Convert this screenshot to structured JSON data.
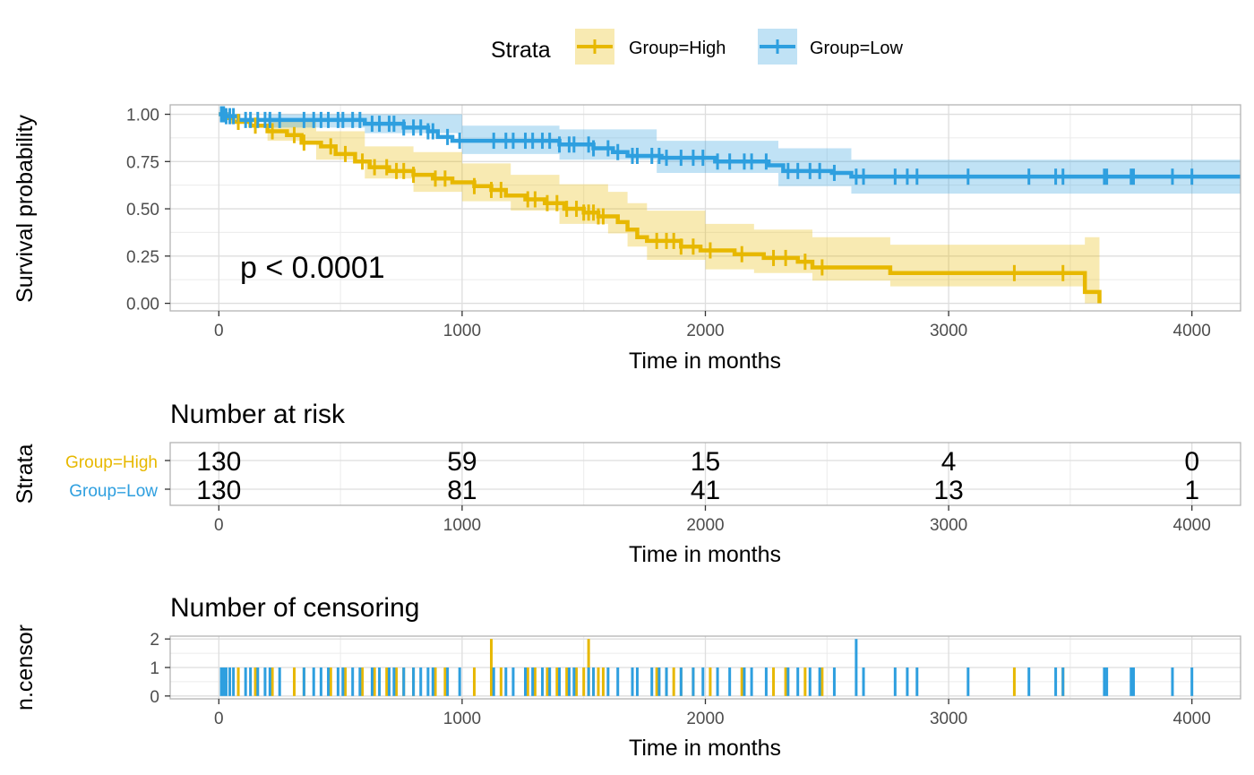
{
  "legend": {
    "title": "Strata",
    "items": [
      {
        "label": "Group=High",
        "color": "#E7B800"
      },
      {
        "label": "Group=Low",
        "color": "#2E9FDF"
      }
    ]
  },
  "chart_data": [
    {
      "type": "line",
      "subtype": "kaplan-meier",
      "title": "",
      "xlabel": "Time in months",
      "ylabel": "Survival probability",
      "xlim": [
        -200,
        4200
      ],
      "ylim": [
        -0.04,
        1.05
      ],
      "x_ticks": [
        0,
        1000,
        2000,
        3000,
        4000
      ],
      "y_ticks": [
        0,
        0.25,
        0.5,
        0.75,
        1
      ],
      "y_tick_labels": [
        "0.00",
        "0.25",
        "0.50",
        "0.75",
        "1.00"
      ],
      "grid": true,
      "legend_position": "top",
      "annotation": "p < 0.0001",
      "series": [
        {
          "name": "Group=High",
          "color": "#E7B800",
          "steps": [
            [
              0,
              1.0
            ],
            [
              30,
              0.98
            ],
            [
              60,
              0.96
            ],
            [
              130,
              0.94
            ],
            [
              200,
              0.91
            ],
            [
              280,
              0.89
            ],
            [
              340,
              0.85
            ],
            [
              420,
              0.83
            ],
            [
              480,
              0.79
            ],
            [
              560,
              0.75
            ],
            [
              620,
              0.72
            ],
            [
              700,
              0.7
            ],
            [
              800,
              0.68
            ],
            [
              880,
              0.66
            ],
            [
              960,
              0.64
            ],
            [
              1050,
              0.62
            ],
            [
              1120,
              0.6
            ],
            [
              1180,
              0.57
            ],
            [
              1260,
              0.55
            ],
            [
              1340,
              0.53
            ],
            [
              1420,
              0.5
            ],
            [
              1500,
              0.48
            ],
            [
              1560,
              0.46
            ],
            [
              1640,
              0.43
            ],
            [
              1680,
              0.39
            ],
            [
              1720,
              0.35
            ],
            [
              1760,
              0.33
            ],
            [
              1900,
              0.3
            ],
            [
              1980,
              0.28
            ],
            [
              2120,
              0.26
            ],
            [
              2240,
              0.24
            ],
            [
              2380,
              0.22
            ],
            [
              2440,
              0.19
            ],
            [
              2760,
              0.16
            ],
            [
              3560,
              0.06
            ],
            [
              3620,
              0.0
            ]
          ],
          "end": 3620,
          "ci_upper": [
            [
              0,
              1.0
            ],
            [
              200,
              0.96
            ],
            [
              400,
              0.91
            ],
            [
              600,
              0.83
            ],
            [
              800,
              0.8
            ],
            [
              1000,
              0.74
            ],
            [
              1200,
              0.68
            ],
            [
              1400,
              0.63
            ],
            [
              1600,
              0.59
            ],
            [
              1680,
              0.53
            ],
            [
              1760,
              0.49
            ],
            [
              2000,
              0.42
            ],
            [
              2200,
              0.39
            ],
            [
              2440,
              0.35
            ],
            [
              2760,
              0.31
            ],
            [
              3500,
              0.31
            ],
            [
              3560,
              0.35
            ],
            [
              3620,
              0.35
            ]
          ],
          "ci_lower": [
            [
              0,
              1.0
            ],
            [
              200,
              0.86
            ],
            [
              400,
              0.76
            ],
            [
              600,
              0.66
            ],
            [
              800,
              0.59
            ],
            [
              1000,
              0.54
            ],
            [
              1200,
              0.49
            ],
            [
              1400,
              0.42
            ],
            [
              1600,
              0.37
            ],
            [
              1680,
              0.3
            ],
            [
              1760,
              0.23
            ],
            [
              2000,
              0.18
            ],
            [
              2200,
              0.16
            ],
            [
              2440,
              0.12
            ],
            [
              2760,
              0.09
            ],
            [
              3560,
              0.0
            ],
            [
              3620,
              0.0
            ]
          ],
          "censor_times": [
            80,
            150,
            220,
            310,
            350,
            460,
            520,
            590,
            640,
            690,
            730,
            760,
            800,
            890,
            930,
            1050,
            1120,
            1160,
            1270,
            1300,
            1350,
            1390,
            1430,
            1470,
            1500,
            1520,
            1540,
            1560,
            1580,
            1800,
            1840,
            1870,
            1900,
            1950,
            2020,
            2150,
            2280,
            2330,
            2410,
            2480,
            3270,
            3470
          ]
        },
        {
          "name": "Group=Low",
          "color": "#2E9FDF",
          "steps": [
            [
              0,
              1.0
            ],
            [
              30,
              0.99
            ],
            [
              80,
              0.97
            ],
            [
              600,
              0.95
            ],
            [
              760,
              0.93
            ],
            [
              860,
              0.91
            ],
            [
              900,
              0.88
            ],
            [
              960,
              0.86
            ],
            [
              1300,
              0.86
            ],
            [
              1400,
              0.84
            ],
            [
              1540,
              0.82
            ],
            [
              1600,
              0.82
            ],
            [
              1620,
              0.8
            ],
            [
              1680,
              0.78
            ],
            [
              1820,
              0.77
            ],
            [
              2040,
              0.75
            ],
            [
              2260,
              0.73
            ],
            [
              2320,
              0.7
            ],
            [
              2520,
              0.69
            ],
            [
              2600,
              0.67
            ],
            [
              4200,
              0.67
            ]
          ],
          "end": 4200,
          "ci_upper": [
            [
              0,
              1.0
            ],
            [
              200,
              1.0
            ],
            [
              600,
              1.0
            ],
            [
              1000,
              0.94
            ],
            [
              1400,
              0.92
            ],
            [
              1800,
              0.86
            ],
            [
              2300,
              0.82
            ],
            [
              2600,
              0.76
            ],
            [
              4200,
              0.76
            ]
          ],
          "ci_lower": [
            [
              0,
              1.0
            ],
            [
              200,
              0.93
            ],
            [
              600,
              0.9
            ],
            [
              1000,
              0.79
            ],
            [
              1400,
              0.76
            ],
            [
              1800,
              0.69
            ],
            [
              2300,
              0.62
            ],
            [
              2600,
              0.58
            ],
            [
              4200,
              0.58
            ]
          ],
          "censor_times": [
            10,
            20,
            30,
            45,
            60,
            110,
            130,
            160,
            190,
            210,
            250,
            350,
            390,
            420,
            450,
            490,
            510,
            550,
            580,
            630,
            660,
            700,
            720,
            760,
            800,
            830,
            860,
            880,
            940,
            990,
            1130,
            1180,
            1210,
            1260,
            1290,
            1330,
            1360,
            1400,
            1440,
            1460,
            1520,
            1540,
            1600,
            1640,
            1700,
            1720,
            1780,
            1810,
            1840,
            1900,
            1950,
            1990,
            2050,
            2100,
            2160,
            2190,
            2250,
            2340,
            2380,
            2430,
            2470,
            2530,
            2620,
            2650,
            2780,
            2830,
            2870,
            3080,
            3330,
            3440,
            3470,
            3640,
            3650,
            3750,
            3760,
            3920,
            4000
          ]
        }
      ]
    },
    {
      "type": "table",
      "title": "Number at risk",
      "xlabel": "Time in months",
      "ylabel": "Strata",
      "xlim": [
        -200,
        4200
      ],
      "x_ticks": [
        0,
        1000,
        2000,
        3000,
        4000
      ],
      "rows": [
        {
          "label": "Group=High",
          "color": "#E7B800",
          "values": [
            "130",
            "59",
            "15",
            "4",
            "0"
          ]
        },
        {
          "label": "Group=Low",
          "color": "#2E9FDF",
          "values": [
            "130",
            "81",
            "41",
            "13",
            "1"
          ]
        }
      ]
    },
    {
      "type": "bar",
      "title": "Number of censoring",
      "xlabel": "Time in months",
      "ylabel": "n.censor",
      "xlim": [
        -200,
        4200
      ],
      "ylim": [
        -0.1,
        2.1
      ],
      "x_ticks": [
        0,
        1000,
        2000,
        3000,
        4000
      ],
      "y_ticks": [
        0,
        1,
        2
      ],
      "grid": true,
      "note": "censor counts per event time; counts of 2 at ~1120 and ~1520 (High) and ~2620 (Low)",
      "double_censor": [
        {
          "series": "Group=High",
          "x": 1120
        },
        {
          "series": "Group=High",
          "x": 1520
        },
        {
          "series": "Group=Low",
          "x": 2620
        }
      ]
    }
  ]
}
